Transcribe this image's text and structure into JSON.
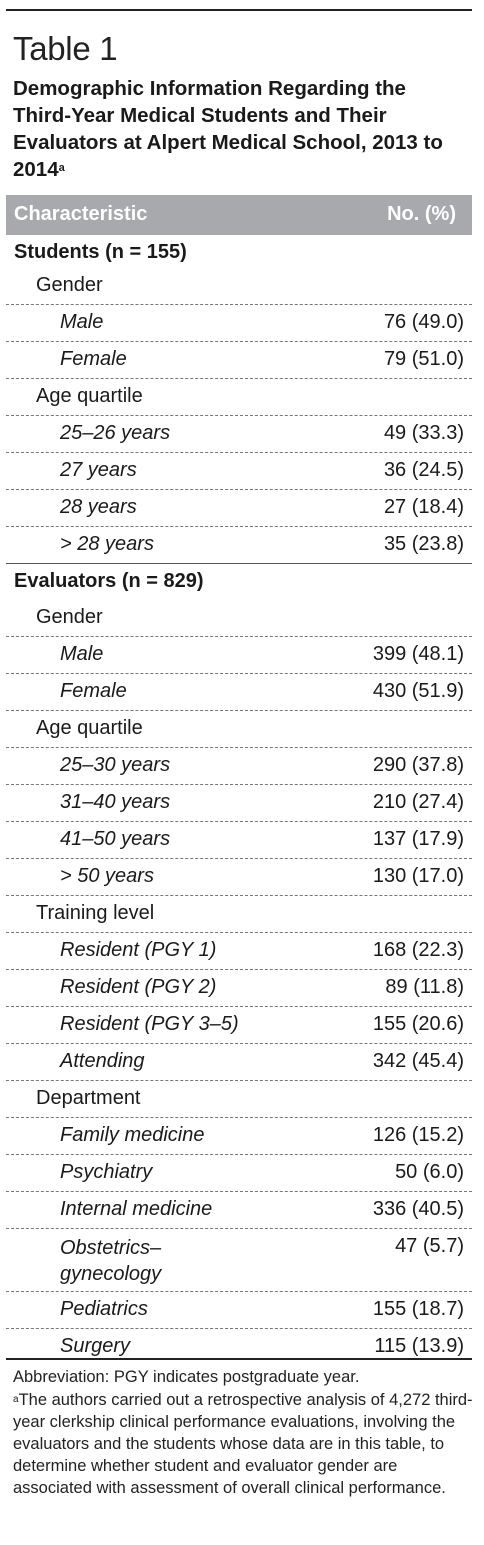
{
  "table": {
    "label": "Table 1",
    "title": "Demographic Information Regarding the Third-Year Medical Students and Their Evaluators at Alpert Medical School, 2013 to 2014",
    "title_sup": "a",
    "col_characteristic": "Characteristic",
    "col_value": "No. (%)"
  },
  "rows": [
    {
      "kind": "group",
      "label": "Students (n = 155)",
      "value": ""
    },
    {
      "kind": "sub",
      "label": "Gender",
      "value": ""
    },
    {
      "kind": "item",
      "label": "Male",
      "value": "76 (49.0)"
    },
    {
      "kind": "item",
      "label": "Female",
      "value": "79 (51.0)"
    },
    {
      "kind": "sub",
      "label": "Age quartile",
      "value": ""
    },
    {
      "kind": "item",
      "label": "25–26 years",
      "value": "49 (33.3)"
    },
    {
      "kind": "item",
      "label": "27 years",
      "value": "36 (24.5)"
    },
    {
      "kind": "item",
      "label": "28 years",
      "value": "27 (18.4)"
    },
    {
      "kind": "item",
      "label": "> 28 years",
      "value": "35 (23.8)"
    },
    {
      "kind": "group",
      "label": "Evaluators (n = 829)",
      "value": ""
    },
    {
      "kind": "sub",
      "label": "Gender",
      "value": ""
    },
    {
      "kind": "item",
      "label": "Male",
      "value": "399 (48.1)"
    },
    {
      "kind": "item",
      "label": "Female",
      "value": "430 (51.9)"
    },
    {
      "kind": "sub",
      "label": "Age quartile",
      "value": ""
    },
    {
      "kind": "item",
      "label": "25–30 years",
      "value": "290 (37.8)"
    },
    {
      "kind": "item",
      "label": "31–40 years",
      "value": "210 (27.4)"
    },
    {
      "kind": "item",
      "label": "41–50 years",
      "value": "137 (17.9)"
    },
    {
      "kind": "item",
      "label": "> 50 years",
      "value": "130 (17.0)"
    },
    {
      "kind": "sub",
      "label": "Training level",
      "value": ""
    },
    {
      "kind": "item",
      "label": "Resident (PGY 1)",
      "value": "168 (22.3)"
    },
    {
      "kind": "item",
      "label": "Resident (PGY 2)",
      "value": "89 (11.8)"
    },
    {
      "kind": "item",
      "label": "Resident (PGY 3–5)",
      "value": "155 (20.6)"
    },
    {
      "kind": "item",
      "label": "Attending",
      "value": "342 (45.4)"
    },
    {
      "kind": "sub",
      "label": "Department",
      "value": ""
    },
    {
      "kind": "item",
      "label": "Family medicine",
      "value": "126 (15.2)"
    },
    {
      "kind": "item",
      "label": "Psychiatry",
      "value": "50 (6.0)"
    },
    {
      "kind": "item",
      "label": "Internal medicine",
      "value": "336 (40.5)"
    },
    {
      "kind": "item",
      "label": "Obstetrics–gynecology",
      "value": "47 (5.7)"
    },
    {
      "kind": "item",
      "label": "Pediatrics",
      "value": "155 (18.7)"
    },
    {
      "kind": "item",
      "label": "Surgery",
      "value": "115 (13.9)"
    }
  ],
  "footnotes": {
    "abbreviation": "Abbreviation: PGY indicates postgraduate year.",
    "note_marker": "a",
    "note": "The authors carried out a retrospective analysis of 4,272 third-year clerkship clinical performance evaluations, involving the evaluators and the students whose data are in this table, to determine whether student and evaluator gender are associated with assessment of overall clinical performance."
  }
}
